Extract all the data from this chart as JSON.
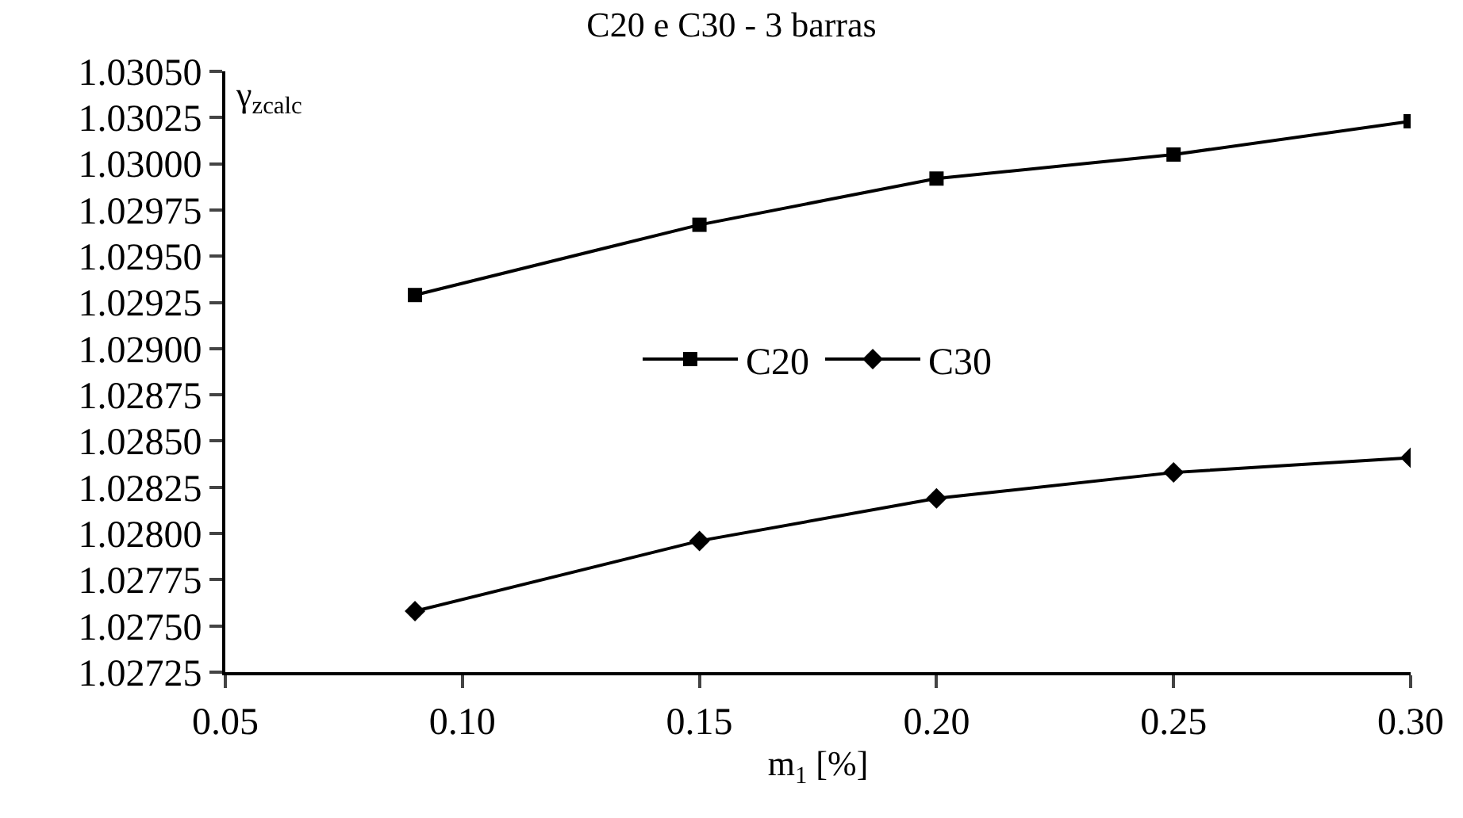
{
  "chart_data": {
    "type": "line",
    "title": "C20 e C30 - 3 barras",
    "xlabel": "m$_{1}$ [%]",
    "ylabel": "γ$_{zcalc}$",
    "x": [
      0.09,
      0.15,
      0.2,
      0.25,
      0.3
    ],
    "series": [
      {
        "name": "C20",
        "color": "#000000",
        "marker": "square",
        "values": [
          1.02929,
          1.02967,
          1.02992,
          1.03005,
          1.03023
        ]
      },
      {
        "name": "C30",
        "color": "#000000",
        "marker": "diamond",
        "values": [
          1.02758,
          1.02796,
          1.02819,
          1.02833,
          1.02841
        ]
      }
    ],
    "xlim": [
      0.05,
      0.3
    ],
    "xticks": [
      {
        "value": 0.05,
        "label": "0.05"
      },
      {
        "value": 0.1,
        "label": "0.10"
      },
      {
        "value": 0.15,
        "label": "0.15"
      },
      {
        "value": 0.2,
        "label": "0.20"
      },
      {
        "value": 0.25,
        "label": "0.25"
      },
      {
        "value": 0.3,
        "label": "0.30"
      }
    ],
    "ylim": [
      1.02725,
      1.0305
    ],
    "yticks": [
      1.02725,
      {
        "value": 1.0275,
        "label": "1.02750"
      },
      1.02775,
      {
        "value": 1.028,
        "label": "1.02800"
      },
      1.02825,
      {
        "value": 1.0285,
        "label": "1.02850"
      },
      1.02875,
      {
        "value": 1.029,
        "label": "1.02900"
      },
      1.02925,
      {
        "value": 1.0295,
        "label": "1.02950"
      },
      1.02975,
      {
        "value": 1.03,
        "label": "1.03000"
      },
      1.03025,
      {
        "value": 1.0305,
        "label": "1.03050"
      }
    ],
    "legend": "center",
    "line_style": "solid"
  }
}
